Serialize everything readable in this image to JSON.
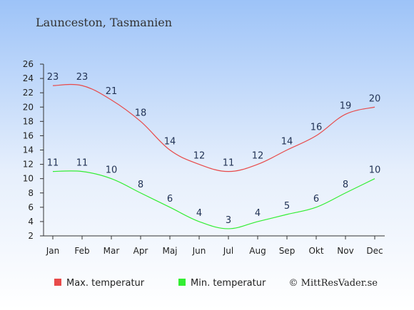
{
  "chart_data": {
    "type": "line",
    "title": "Launceston, Tasmanien",
    "categories": [
      "Jan",
      "Feb",
      "Mar",
      "Apr",
      "Maj",
      "Jun",
      "Jul",
      "Aug",
      "Sep",
      "Okt",
      "Nov",
      "Dec"
    ],
    "series": [
      {
        "name": "Max. temperatur",
        "color": "#e84a4a",
        "values": [
          23,
          23,
          21,
          18,
          14,
          12,
          11,
          12,
          14,
          16,
          19,
          20
        ]
      },
      {
        "name": "Min. temperatur",
        "color": "#33ee33",
        "values": [
          11,
          11,
          10,
          8,
          6,
          4,
          3,
          4,
          5,
          6,
          8,
          10
        ]
      }
    ],
    "y_ticks": [
      2,
      4,
      6,
      8,
      10,
      12,
      14,
      16,
      18,
      20,
      22,
      24,
      26
    ],
    "ylim": [
      2,
      26
    ],
    "grid": false,
    "legend_position": "bottom",
    "xlabel": "",
    "ylabel": ""
  },
  "credit": "© MittResVader.se",
  "colors": {
    "background_top": "#9dc3f8",
    "background_bottom": "#ffffff",
    "axis": "#333333"
  }
}
